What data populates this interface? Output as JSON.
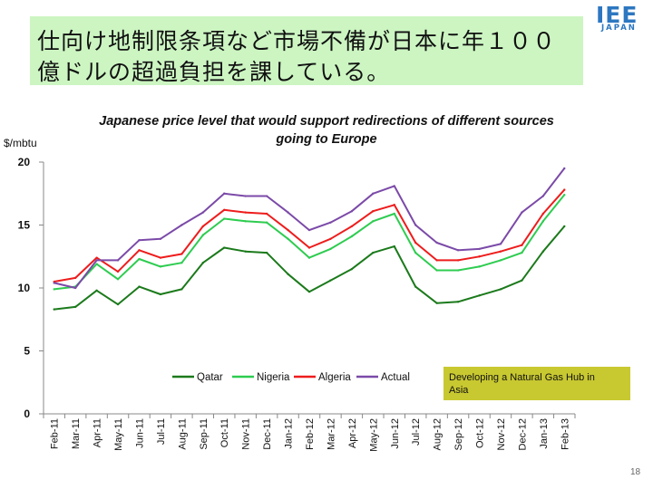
{
  "header": {
    "title_line1": "仕向け地制限条項など市場不備が日本に年１００",
    "title_line2": "億ドルの超過負担を課している。"
  },
  "logo": {
    "main": "IEE",
    "sub": "JAPAN"
  },
  "chart_data": {
    "type": "line",
    "title": "Japanese price level that would support redirections of different sources going to Europe",
    "title_lines": [
      "Japanese price level that would support redirections of different sources",
      "going to Europe"
    ],
    "ylabel": "$/mbtu",
    "ylim": [
      0,
      20
    ],
    "yticks": [
      0,
      5,
      10,
      15,
      20
    ],
    "grid": false,
    "legend_position": "bottom-center",
    "categories": [
      "Feb-11",
      "Mar-11",
      "Apr-11",
      "May-11",
      "Jun-11",
      "Jul-11",
      "Aug-11",
      "Sep-11",
      "Oct-11",
      "Nov-11",
      "Dec-11",
      "Jan-12",
      "Feb-12",
      "Mar-12",
      "Apr-12",
      "May-12",
      "Jun-12",
      "Jul-12",
      "Aug-12",
      "Sep-12",
      "Oct-12",
      "Nov-12",
      "Dec-12",
      "Jan-13",
      "Feb-13"
    ],
    "series": [
      {
        "name": "Qatar",
        "color": "#1b7a1b",
        "values": [
          8.3,
          8.5,
          9.8,
          8.7,
          10.1,
          9.5,
          9.9,
          12.0,
          13.2,
          12.9,
          12.8,
          11.1,
          9.7,
          10.6,
          11.5,
          12.8,
          13.3,
          10.1,
          8.8,
          8.9,
          9.4,
          9.9,
          10.6,
          12.9,
          14.9
        ]
      },
      {
        "name": "Nigeria",
        "color": "#2ecc50",
        "values": [
          9.9,
          10.1,
          11.9,
          10.7,
          12.3,
          11.7,
          12.0,
          14.2,
          15.5,
          15.3,
          15.2,
          13.9,
          12.4,
          13.1,
          14.1,
          15.3,
          15.9,
          12.8,
          11.4,
          11.4,
          11.7,
          12.2,
          12.8,
          15.3,
          17.4
        ]
      },
      {
        "name": "Algeria",
        "color": "#ee1c1c",
        "values": [
          10.5,
          10.8,
          12.4,
          11.3,
          13.0,
          12.4,
          12.7,
          14.9,
          16.2,
          16.0,
          15.9,
          14.6,
          13.2,
          13.9,
          14.9,
          16.1,
          16.6,
          13.6,
          12.2,
          12.2,
          12.5,
          12.9,
          13.4,
          15.9,
          17.8
        ]
      },
      {
        "name": "Actual",
        "color": "#7b4aa8",
        "values": [
          10.4,
          10.0,
          12.2,
          12.2,
          13.8,
          13.9,
          15.0,
          16.0,
          17.5,
          17.3,
          17.3,
          16.0,
          14.6,
          15.2,
          16.1,
          17.5,
          18.1,
          15.0,
          13.6,
          13.0,
          13.1,
          13.5,
          16.0,
          17.3,
          19.5
        ]
      }
    ],
    "annotation": {
      "text": "Developing a Natural Gas Hub in Asia",
      "lines": [
        "Developing a Natural Gas Hub in",
        "Asia"
      ],
      "background": "#c8c831"
    }
  },
  "footer": {
    "page_number": "18"
  }
}
